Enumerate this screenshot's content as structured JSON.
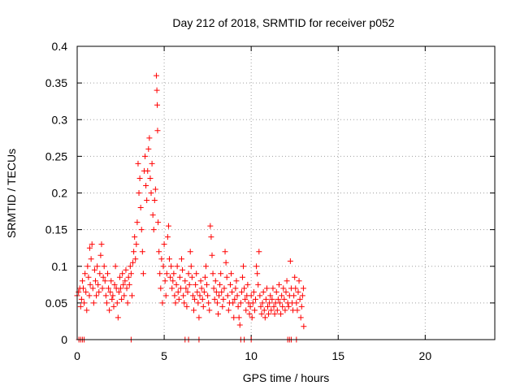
{
  "chart_data": {
    "type": "scatter",
    "title": "Day 212 of 2018, SRMTID for receiver p052",
    "xlabel": "GPS time / hours",
    "ylabel": "SRMTID / TECUs",
    "xlim": [
      0,
      24
    ],
    "ylim": [
      0,
      0.4
    ],
    "x_ticks": [
      0,
      5,
      10,
      15,
      20
    ],
    "x_tick_labels": [
      "0",
      "5",
      "10",
      "15",
      "20"
    ],
    "y_ticks": [
      0,
      0.05,
      0.1,
      0.15,
      0.2,
      0.25,
      0.3,
      0.35,
      0.4
    ],
    "y_tick_labels": [
      "0",
      "0.05",
      "0.1",
      "0.15",
      "0.2",
      "0.25",
      "0.3",
      "0.35",
      "0.4"
    ],
    "grid": true,
    "marker": "+",
    "color": "#ff0000",
    "series": [
      {
        "name": "SRMTID",
        "points": [
          [
            0.0,
            0.06
          ],
          [
            0.08,
            0.065
          ],
          [
            0.15,
            0.07
          ],
          [
            0.2,
            0.045
          ],
          [
            0.25,
            0.055
          ],
          [
            0.3,
            0.08
          ],
          [
            0.35,
            0.07
          ],
          [
            0.4,
            0.05
          ],
          [
            0.45,
            0.09
          ],
          [
            0.5,
            0.065
          ],
          [
            0.55,
            0.04
          ],
          [
            0.6,
            0.1
          ],
          [
            0.65,
            0.085
          ],
          [
            0.7,
            0.06
          ],
          [
            0.72,
            0.125
          ],
          [
            0.75,
            0.075
          ],
          [
            0.8,
            0.11
          ],
          [
            0.85,
            0.13
          ],
          [
            0.9,
            0.07
          ],
          [
            0.95,
            0.05
          ],
          [
            1.0,
            0.095
          ],
          [
            1.05,
            0.08
          ],
          [
            1.1,
            0.06
          ],
          [
            1.15,
            0.1
          ],
          [
            1.2,
            0.075
          ],
          [
            1.25,
            0.065
          ],
          [
            1.3,
            0.09
          ],
          [
            1.35,
            0.115
          ],
          [
            1.4,
            0.13
          ],
          [
            1.45,
            0.07
          ],
          [
            1.5,
            0.085
          ],
          [
            1.55,
            0.1
          ],
          [
            1.6,
            0.08
          ],
          [
            1.65,
            0.06
          ],
          [
            1.7,
            0.05
          ],
          [
            1.75,
            0.09
          ],
          [
            1.8,
            0.07
          ],
          [
            1.85,
            0.04
          ],
          [
            1.9,
            0.065
          ],
          [
            1.95,
            0.08
          ],
          [
            2.0,
            0.055
          ],
          [
            2.05,
            0.06
          ],
          [
            2.1,
            0.045
          ],
          [
            2.15,
            0.075
          ],
          [
            2.2,
            0.1
          ],
          [
            2.25,
            0.07
          ],
          [
            2.3,
            0.05
          ],
          [
            2.35,
            0.03
          ],
          [
            2.4,
            0.065
          ],
          [
            2.45,
            0.085
          ],
          [
            2.5,
            0.07
          ],
          [
            2.55,
            0.055
          ],
          [
            2.6,
            0.09
          ],
          [
            2.65,
            0.075
          ],
          [
            2.7,
            0.06
          ],
          [
            2.75,
            0.08
          ],
          [
            2.8,
            0.095
          ],
          [
            2.85,
            0.07
          ],
          [
            2.9,
            0.05
          ],
          [
            2.95,
            0.085
          ],
          [
            3.0,
            0.075
          ],
          [
            3.05,
            0.1
          ],
          [
            3.1,
            0.09
          ],
          [
            3.15,
            0.06
          ],
          [
            3.2,
            0.105
          ],
          [
            3.25,
            0.12
          ],
          [
            3.3,
            0.14
          ],
          [
            3.35,
            0.11
          ],
          [
            3.4,
            0.13
          ],
          [
            3.45,
            0.16
          ],
          [
            3.5,
            0.24
          ],
          [
            3.55,
            0.2
          ],
          [
            3.6,
            0.22
          ],
          [
            3.65,
            0.18
          ],
          [
            3.7,
            0.15
          ],
          [
            3.75,
            0.12
          ],
          [
            3.8,
            0.09
          ],
          [
            3.85,
            0.23
          ],
          [
            3.9,
            0.25
          ],
          [
            3.95,
            0.21
          ],
          [
            4.0,
            0.19
          ],
          [
            4.05,
            0.23
          ],
          [
            4.1,
            0.26
          ],
          [
            4.15,
            0.275
          ],
          [
            4.2,
            0.22
          ],
          [
            4.25,
            0.2
          ],
          [
            4.3,
            0.24
          ],
          [
            4.35,
            0.17
          ],
          [
            4.4,
            0.15
          ],
          [
            4.45,
            0.19
          ],
          [
            4.5,
            0.205
          ],
          [
            4.55,
            0.36
          ],
          [
            4.58,
            0.34
          ],
          [
            4.6,
            0.32
          ],
          [
            4.62,
            0.285
          ],
          [
            4.65,
            0.16
          ],
          [
            4.7,
            0.12
          ],
          [
            4.75,
            0.09
          ],
          [
            4.8,
            0.07
          ],
          [
            4.85,
            0.11
          ],
          [
            4.9,
            0.05
          ],
          [
            4.95,
            0.1
          ],
          [
            5.0,
            0.13
          ],
          [
            5.05,
            0.08
          ],
          [
            5.1,
            0.06
          ],
          [
            5.15,
            0.09
          ],
          [
            5.2,
            0.14
          ],
          [
            5.25,
            0.155
          ],
          [
            5.3,
            0.11
          ],
          [
            5.35,
            0.085
          ],
          [
            5.4,
            0.1
          ],
          [
            5.45,
            0.07
          ],
          [
            5.5,
            0.08
          ],
          [
            5.55,
            0.09
          ],
          [
            5.6,
            0.06
          ],
          [
            5.65,
            0.05
          ],
          [
            5.7,
            0.075
          ],
          [
            5.75,
            0.1
          ],
          [
            5.8,
            0.065
          ],
          [
            5.85,
            0.055
          ],
          [
            5.9,
            0.085
          ],
          [
            5.95,
            0.07
          ],
          [
            6.0,
            0.11
          ],
          [
            6.05,
            0.095
          ],
          [
            6.1,
            0.06
          ],
          [
            6.15,
            0.05
          ],
          [
            6.2,
            0.08
          ],
          [
            6.25,
            0.07
          ],
          [
            6.3,
            0.045
          ],
          [
            6.35,
            0.065
          ],
          [
            6.4,
            0.09
          ],
          [
            6.45,
            0.075
          ],
          [
            6.5,
            0.12
          ],
          [
            6.55,
            0.1
          ],
          [
            6.6,
            0.085
          ],
          [
            6.65,
            0.06
          ],
          [
            6.7,
            0.04
          ],
          [
            6.75,
            0.055
          ],
          [
            6.8,
            0.075
          ],
          [
            6.85,
            0.09
          ],
          [
            6.9,
            0.065
          ],
          [
            6.95,
            0.05
          ],
          [
            7.0,
            0.03
          ],
          [
            7.05,
            0.06
          ],
          [
            7.1,
            0.08
          ],
          [
            7.15,
            0.07
          ],
          [
            7.2,
            0.055
          ],
          [
            7.25,
            0.045
          ],
          [
            7.3,
            0.065
          ],
          [
            7.35,
            0.085
          ],
          [
            7.4,
            0.1
          ],
          [
            7.45,
            0.075
          ],
          [
            7.5,
            0.06
          ],
          [
            7.55,
            0.05
          ],
          [
            7.6,
            0.04
          ],
          [
            7.65,
            0.155
          ],
          [
            7.7,
            0.14
          ],
          [
            7.75,
            0.115
          ],
          [
            7.8,
            0.09
          ],
          [
            7.85,
            0.07
          ],
          [
            7.9,
            0.055
          ],
          [
            7.95,
            0.08
          ],
          [
            8.0,
            0.065
          ],
          [
            8.05,
            0.05
          ],
          [
            8.1,
            0.035
          ],
          [
            8.15,
            0.06
          ],
          [
            8.2,
            0.075
          ],
          [
            8.25,
            0.09
          ],
          [
            8.3,
            0.065
          ],
          [
            8.35,
            0.045
          ],
          [
            8.4,
            0.055
          ],
          [
            8.45,
            0.07
          ],
          [
            8.5,
            0.12
          ],
          [
            8.55,
            0.105
          ],
          [
            8.6,
            0.085
          ],
          [
            8.65,
            0.06
          ],
          [
            8.7,
            0.04
          ],
          [
            8.75,
            0.05
          ],
          [
            8.8,
            0.075
          ],
          [
            8.85,
            0.09
          ],
          [
            8.9,
            0.065
          ],
          [
            8.95,
            0.05
          ],
          [
            9.0,
            0.03
          ],
          [
            9.05,
            0.055
          ],
          [
            9.1,
            0.07
          ],
          [
            9.15,
            0.08
          ],
          [
            9.2,
            0.06
          ],
          [
            9.25,
            0.045
          ],
          [
            9.3,
            0.03
          ],
          [
            9.35,
            0.02
          ],
          [
            9.4,
            0.05
          ],
          [
            9.45,
            0.065
          ],
          [
            9.5,
            0.085
          ],
          [
            9.55,
            0.1
          ],
          [
            9.6,
            0.07
          ],
          [
            9.65,
            0.055
          ],
          [
            9.7,
            0.04
          ],
          [
            9.75,
            0.06
          ],
          [
            9.8,
            0.075
          ],
          [
            9.85,
            0.05
          ],
          [
            9.9,
            0.035
          ],
          [
            9.95,
            0.045
          ],
          [
            10.0,
            0.06
          ],
          [
            10.05,
            0.03
          ],
          [
            10.1,
            0.05
          ],
          [
            10.15,
            0.065
          ],
          [
            10.2,
            0.04
          ],
          [
            10.25,
            0.055
          ],
          [
            10.3,
            0.1
          ],
          [
            10.35,
            0.09
          ],
          [
            10.4,
            0.075
          ],
          [
            10.45,
            0.12
          ],
          [
            10.5,
            0.06
          ],
          [
            10.55,
            0.045
          ],
          [
            10.6,
            0.035
          ],
          [
            10.65,
            0.05
          ],
          [
            10.7,
            0.065
          ],
          [
            10.75,
            0.04
          ],
          [
            10.8,
            0.03
          ],
          [
            10.85,
            0.055
          ],
          [
            10.9,
            0.07
          ],
          [
            10.95,
            0.045
          ],
          [
            11.0,
            0.035
          ],
          [
            11.05,
            0.05
          ],
          [
            11.1,
            0.06
          ],
          [
            11.15,
            0.04
          ],
          [
            11.2,
            0.055
          ],
          [
            11.25,
            0.07
          ],
          [
            11.3,
            0.045
          ],
          [
            11.35,
            0.035
          ],
          [
            11.4,
            0.05
          ],
          [
            11.45,
            0.065
          ],
          [
            11.5,
            0.04
          ],
          [
            11.55,
            0.055
          ],
          [
            11.6,
            0.075
          ],
          [
            11.65,
            0.05
          ],
          [
            11.7,
            0.035
          ],
          [
            11.75,
            0.06
          ],
          [
            11.8,
            0.045
          ],
          [
            11.85,
            0.07
          ],
          [
            11.9,
            0.055
          ],
          [
            11.95,
            0.04
          ],
          [
            12.0,
            0.065
          ],
          [
            12.05,
            0.08
          ],
          [
            12.1,
            0.05
          ],
          [
            12.15,
            0.045
          ],
          [
            12.2,
            0.06
          ],
          [
            12.25,
            0.107
          ],
          [
            12.3,
            0.07
          ],
          [
            12.35,
            0.05
          ],
          [
            12.4,
            0.04
          ],
          [
            12.45,
            0.06
          ],
          [
            12.5,
            0.085
          ],
          [
            12.55,
            0.07
          ],
          [
            12.6,
            0.05
          ],
          [
            12.65,
            0.04
          ],
          [
            12.7,
            0.065
          ],
          [
            12.75,
            0.08
          ],
          [
            12.8,
            0.055
          ],
          [
            12.85,
            0.03
          ],
          [
            12.9,
            0.045
          ],
          [
            12.95,
            0.06
          ],
          [
            13.0,
            0.07
          ],
          [
            13.02,
            0.018
          ],
          [
            0.1,
            0.0
          ],
          [
            0.2,
            0.0
          ],
          [
            0.3,
            0.0
          ],
          [
            0.4,
            0.0
          ],
          [
            3.1,
            0.0
          ],
          [
            6.2,
            0.0
          ],
          [
            6.4,
            0.0
          ],
          [
            7.0,
            0.0
          ],
          [
            9.4,
            0.0
          ],
          [
            9.6,
            0.0
          ],
          [
            10.0,
            0.0
          ],
          [
            12.1,
            0.0
          ],
          [
            12.2,
            0.0
          ],
          [
            12.3,
            0.0
          ],
          [
            12.6,
            0.0
          ]
        ]
      }
    ]
  }
}
